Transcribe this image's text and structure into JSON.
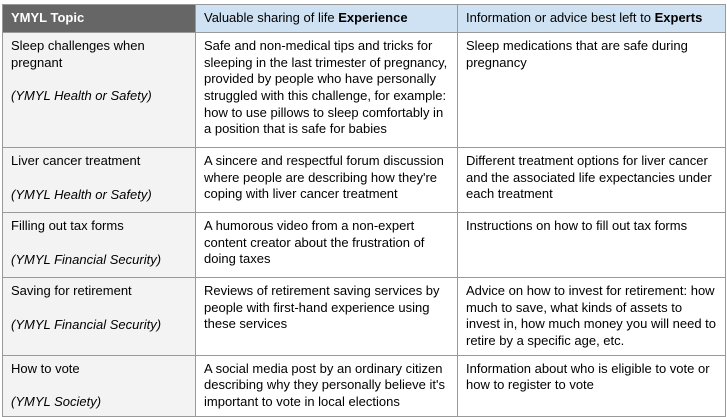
{
  "colors": {
    "header_dark": "#666666",
    "header_blue": "#cfe2f3",
    "topic_column_gray": "#f3f3f3",
    "border": "#999999",
    "header_text": "#ffffff",
    "body_text": "#000000"
  },
  "table": {
    "header": {
      "topic_label": "YMYL Topic",
      "experience_prefix": "Valuable sharing of life ",
      "experience_bold": "Experience",
      "experts_prefix": "Information or advice best left to ",
      "experts_bold": "Experts"
    },
    "rows": [
      {
        "topic": "Sleep challenges when pregnant",
        "category": "(YMYL Health or Safety)",
        "experience": "Safe and non-medical tips and tricks for sleeping in the last trimester of pregnancy, provided by people who have personally struggled with this challenge, for example: how to use pillows to sleep comfortably in a position that is safe for babies",
        "experts": "Sleep medications that are safe during pregnancy"
      },
      {
        "topic": "Liver cancer treatment",
        "category": "(YMYL Health or Safety)",
        "experience": "A sincere and respectful forum discussion where people are describing how they're coping with liver cancer treatment",
        "experts": "Different treatment options for liver cancer and the associated life expectancies under each treatment"
      },
      {
        "topic": "Filling out tax forms",
        "category": "(YMYL Financial Security)",
        "experience": "A humorous video from a non-expert content creator about the frustration of doing taxes",
        "experts": "Instructions on how to fill out tax forms"
      },
      {
        "topic": "Saving for retirement",
        "category": "(YMYL Financial Security)",
        "experience": "Reviews of retirement saving services by people with first-hand experience using these services",
        "experts": "Advice on how to invest for retirement: how much to save, what kinds of assets to invest in, how much money you will need to retire by a specific age, etc."
      },
      {
        "topic": "How to vote",
        "category": "(YMYL Society)",
        "experience": "A social media post by an ordinary citizen describing why they personally believe it's important to vote in local elections",
        "experts": "Information about who is eligible to vote or how to register to vote"
      }
    ]
  }
}
